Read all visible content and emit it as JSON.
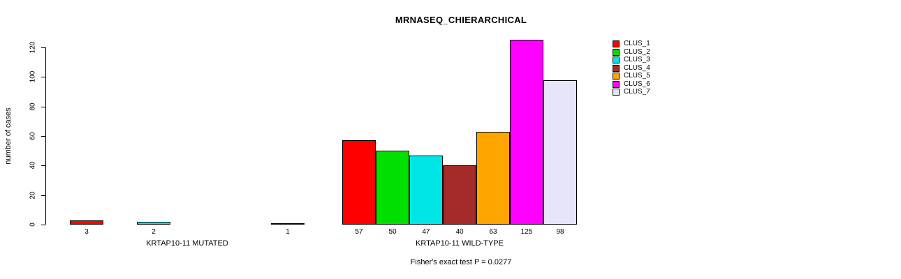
{
  "title": "MRNASEQ_CHIERARCHICAL",
  "subtitle": "Fisher's exact test P = 0.0277",
  "ylabel": "number of cases",
  "chart_data": {
    "type": "bar",
    "title": "MRNASEQ_CHIERARCHICAL",
    "xlabel": "",
    "ylabel": "number of cases",
    "ylim": [
      0,
      130
    ],
    "yticks": [
      0,
      20,
      40,
      60,
      80,
      100,
      120
    ],
    "grid": false,
    "legend_position": "right",
    "series_names": [
      "CLUS_1",
      "CLUS_2",
      "CLUS_3",
      "CLUS_4",
      "CLUS_5",
      "CLUS_6",
      "CLUS_7"
    ],
    "colors": [
      "#ff0000",
      "#00e000",
      "#00e5e5",
      "#a52a2a",
      "#ffa500",
      "#ff00ff",
      "#e6e6fa"
    ],
    "groups": [
      {
        "label": "KRTAP10-11 MUTATED",
        "values": [
          3,
          0,
          2,
          0,
          0,
          0,
          1
        ],
        "bar_labels": [
          "3",
          "",
          "2",
          "",
          "",
          "",
          "1"
        ]
      },
      {
        "label": "KRTAP10-11 WILD-TYPE",
        "values": [
          57,
          50,
          47,
          40,
          63,
          125,
          98
        ],
        "bar_labels": [
          "57",
          "50",
          "47",
          "40",
          "63",
          "125",
          "98"
        ]
      }
    ],
    "annotation": "Fisher's exact test P = 0.0277"
  }
}
